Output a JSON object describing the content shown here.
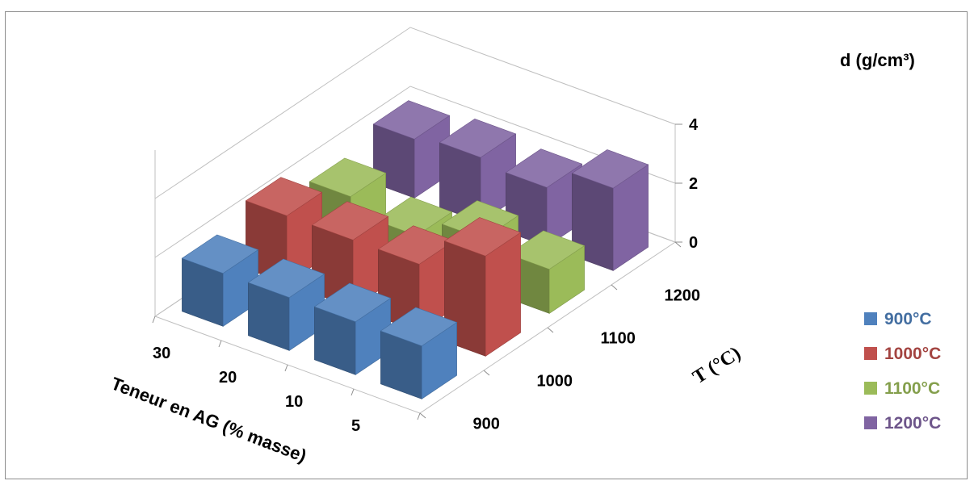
{
  "chart_data": {
    "type": "bar",
    "projection": "3d-column",
    "categories_x": [
      "5",
      "10",
      "20",
      "30"
    ],
    "categories_z": [
      "900",
      "1000",
      "1100",
      "1200"
    ],
    "series": [
      {
        "name": "900°C",
        "color": "#4f81bd",
        "values": [
          1.8,
          1.8,
          1.8,
          1.8
        ]
      },
      {
        "name": "1000°C",
        "color": "#c0504d",
        "values": [
          3.4,
          2.3,
          2.3,
          2.3
        ]
      },
      {
        "name": "1100°C",
        "color": "#9bbb59",
        "values": [
          1.5,
          1.7,
          1.0,
          1.5
        ]
      },
      {
        "name": "1200°C",
        "color": "#8064a2",
        "values": [
          2.8,
          2.0,
          2.2,
          2.0
        ]
      }
    ],
    "zlabel": "d (g/cm³)",
    "xlabel": "Teneur en AG (% masse)",
    "ylabel": "T (°C)",
    "y_ticks": [
      "0",
      "2",
      "4"
    ],
    "ylim": [
      0,
      4
    ],
    "grid": true,
    "legend_position": "right"
  }
}
